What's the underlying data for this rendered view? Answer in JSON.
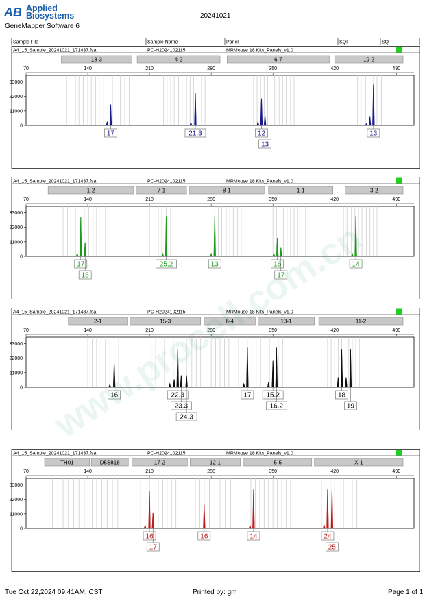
{
  "header": {
    "brand_line1": "Applied",
    "brand_line2": "Biosystems",
    "software": "GeneMapper Software 6",
    "date": "20241021",
    "logo_letters": "AB"
  },
  "watermark": "www.procell.com.cn",
  "columns": [
    "Sample File",
    "Sample Name",
    "Panel",
    "SQI",
    "SQ"
  ],
  "footer": {
    "timestamp": "Tue Oct 22,2024 09:41AM, CST",
    "printed_by": "Printed by: gm",
    "page": "Page 1 of 1"
  },
  "chart_data": [
    {
      "type": "electropherogram",
      "sample_file": "A4_15_Sample_20241021_171437.fsa",
      "sample_name": "PC-H2024102115",
      "panel": "MRMouse 18 Kits_Panels_v1.0",
      "status_color": "#1ed21e",
      "color": "#1a1a8c",
      "xlim": [
        70,
        510
      ],
      "xticks": [
        70,
        140,
        210,
        280,
        350,
        420,
        490
      ],
      "ylim": [
        0,
        38000
      ],
      "yticks": [
        0,
        11000,
        22000,
        33000
      ],
      "markers": [
        {
          "name": "18-3",
          "from": 110,
          "to": 190
        },
        {
          "name": "4-2",
          "from": 196,
          "to": 290
        },
        {
          "name": "6-7",
          "from": 298,
          "to": 414
        },
        {
          "name": "19-2",
          "from": 420,
          "to": 520
        }
      ],
      "bins": [
        116,
        121,
        126,
        130,
        135,
        140,
        144,
        149,
        153,
        158,
        163,
        168,
        173,
        177,
        182,
        187,
        226,
        230,
        234,
        238,
        243,
        247,
        252,
        256,
        260,
        264,
        269,
        273,
        328,
        332,
        336,
        340,
        344,
        348,
        352,
        357,
        361,
        365,
        370,
        374,
        446,
        450,
        455,
        459,
        464,
        468,
        473,
        477
      ],
      "peaks": [
        {
          "x": 162,
          "y": 2400
        },
        {
          "x": 166,
          "y": 15800
        },
        {
          "x": 257,
          "y": 2200
        },
        {
          "x": 262,
          "y": 25000
        },
        {
          "x": 333,
          "y": 2600
        },
        {
          "x": 337,
          "y": 20500
        },
        {
          "x": 341,
          "y": 7200
        },
        {
          "x": 456,
          "y": 1200
        },
        {
          "x": 460,
          "y": 6500
        },
        {
          "x": 464,
          "y": 31000
        }
      ],
      "alleles": [
        {
          "x": 166,
          "label": "17"
        },
        {
          "x": 262,
          "label": "21.3"
        },
        {
          "x": 337,
          "label": "12"
        },
        {
          "x": 341,
          "label": "13",
          "row": 2
        },
        {
          "x": 464,
          "label": "13"
        }
      ]
    },
    {
      "type": "electropherogram",
      "sample_file": "A4_15_Sample_20241021_171437.fsa",
      "sample_name": "PC-H2024102115",
      "panel": "MRMouse 18 Kits_Panels_v1.0",
      "status_color": "#1ed21e",
      "color": "#1c9a1c",
      "xlim": [
        70,
        510
      ],
      "xticks": [
        70,
        140,
        210,
        280,
        350,
        420,
        490
      ],
      "ylim": [
        0,
        38000
      ],
      "yticks": [
        0,
        11000,
        22000,
        33000
      ],
      "markers": [
        {
          "name": "1-2",
          "from": 95,
          "to": 192
        },
        {
          "name": "7-1",
          "from": 195,
          "to": 252
        },
        {
          "name": "8-1",
          "from": 255,
          "to": 340
        },
        {
          "name": "1-1",
          "from": 345,
          "to": 418
        },
        {
          "name": "3-2",
          "from": 432,
          "to": 535
        }
      ],
      "bins": [
        112,
        117,
        121,
        126,
        131,
        136,
        141,
        146,
        150,
        155,
        160,
        205,
        210,
        215,
        220,
        224,
        229,
        234,
        284,
        288,
        292,
        297,
        301,
        305,
        310,
        314,
        350,
        354,
        358,
        362,
        366,
        370,
        374,
        378,
        383,
        387,
        430,
        434,
        439,
        443,
        447,
        451,
        456,
        460,
        464,
        468
      ],
      "peaks": [
        {
          "x": 128,
          "y": 2100
        },
        {
          "x": 132,
          "y": 30000
        },
        {
          "x": 137,
          "y": 10500
        },
        {
          "x": 225,
          "y": 2000
        },
        {
          "x": 229,
          "y": 30500
        },
        {
          "x": 280,
          "y": 2000
        },
        {
          "x": 284,
          "y": 30500
        },
        {
          "x": 351,
          "y": 2300
        },
        {
          "x": 355,
          "y": 14000
        },
        {
          "x": 359,
          "y": 6500
        },
        {
          "x": 440,
          "y": 2000
        },
        {
          "x": 444,
          "y": 30500
        }
      ],
      "alleles": [
        {
          "x": 132,
          "label": "17"
        },
        {
          "x": 137,
          "label": "18",
          "row": 2
        },
        {
          "x": 229,
          "label": "25.2"
        },
        {
          "x": 284,
          "label": "13"
        },
        {
          "x": 355,
          "label": "16"
        },
        {
          "x": 359,
          "label": "17",
          "row": 2
        },
        {
          "x": 444,
          "label": "14"
        }
      ]
    },
    {
      "type": "electropherogram",
      "sample_file": "A4_15_Sample_20241021_171437.fsa",
      "sample_name": "PC-H2024102115",
      "panel": "MRMouse 18 Kits_Panels_v1.0",
      "status_color": "#1ed21e",
      "color": "#111111",
      "xlim": [
        70,
        510
      ],
      "xticks": [
        70,
        140,
        210,
        280,
        350,
        420,
        490
      ],
      "ylim": [
        0,
        38000
      ],
      "yticks": [
        0,
        11000,
        22000,
        33000
      ],
      "markers": [
        {
          "name": "2-1",
          "from": 118,
          "to": 185
        },
        {
          "name": "15-3",
          "from": 188,
          "to": 268
        },
        {
          "name": "6-4",
          "from": 272,
          "to": 330
        },
        {
          "name": "13-1",
          "from": 333,
          "to": 397
        },
        {
          "name": "11-2",
          "from": 402,
          "to": 560
        }
      ],
      "bins": [
        140,
        145,
        150,
        155,
        160,
        165,
        170,
        175,
        180,
        212,
        217,
        222,
        227,
        232,
        237,
        242,
        247,
        252,
        258,
        263,
        268,
        280,
        285,
        290,
        295,
        300,
        306,
        311,
        316,
        321,
        326,
        331,
        336,
        341,
        346,
        351,
        356,
        361,
        412,
        416,
        420,
        424,
        428,
        432,
        436,
        440,
        444,
        448
      ],
      "peaks": [
        {
          "x": 165,
          "y": 1800
        },
        {
          "x": 170,
          "y": 18000
        },
        {
          "x": 233,
          "y": 2500
        },
        {
          "x": 238,
          "y": 6000
        },
        {
          "x": 242,
          "y": 28500
        },
        {
          "x": 246,
          "y": 9000
        },
        {
          "x": 252,
          "y": 9000
        },
        {
          "x": 317,
          "y": 2400
        },
        {
          "x": 321,
          "y": 30000
        },
        {
          "x": 345,
          "y": 4000
        },
        {
          "x": 350,
          "y": 20000
        },
        {
          "x": 354,
          "y": 30000
        },
        {
          "x": 424,
          "y": 7500
        },
        {
          "x": 428,
          "y": 28500
        },
        {
          "x": 433,
          "y": 7500
        },
        {
          "x": 438,
          "y": 28500
        }
      ],
      "alleles": [
        {
          "x": 170,
          "label": "16"
        },
        {
          "x": 242,
          "label": "22.3"
        },
        {
          "x": 246,
          "label": "23.3",
          "row": 2
        },
        {
          "x": 252,
          "label": "24.3",
          "row": 3
        },
        {
          "x": 321,
          "label": "17"
        },
        {
          "x": 350,
          "label": "15.2"
        },
        {
          "x": 354,
          "label": "16.2",
          "row": 2
        },
        {
          "x": 428,
          "label": "18"
        },
        {
          "x": 438,
          "label": "19",
          "row": 2
        }
      ]
    },
    {
      "type": "electropherogram",
      "sample_file": "A4_15_Sample_20241021_171437.fsa",
      "sample_name": "PC-H2024102115",
      "panel": "MRMouse 18 Kits_Panels_v1.0",
      "status_color": "#1ed21e",
      "color": "#bb1c1c",
      "xlim": [
        70,
        510
      ],
      "xticks": [
        70,
        140,
        210,
        280,
        350,
        420,
        490
      ],
      "ylim": [
        0,
        38000
      ],
      "yticks": [
        0,
        11000,
        22000,
        33000
      ],
      "markers": [
        {
          "name": "TH01",
          "from": 91,
          "to": 142
        },
        {
          "name": "D5S818",
          "from": 144,
          "to": 186
        },
        {
          "name": "17-2",
          "from": 190,
          "to": 253
        },
        {
          "name": "12-1",
          "from": 256,
          "to": 313
        },
        {
          "name": "5-5",
          "from": 317,
          "to": 394
        },
        {
          "name": "X-1",
          "from": 397,
          "to": 527
        }
      ],
      "bins": [
        100,
        106,
        112,
        118,
        124,
        130,
        136,
        145,
        150,
        156,
        162,
        168,
        174,
        180,
        200,
        205,
        210,
        215,
        220,
        225,
        230,
        235,
        240,
        262,
        267,
        272,
        278,
        284,
        290,
        296,
        302,
        325,
        330,
        335,
        340,
        345,
        350,
        355,
        360,
        365,
        370,
        400,
        405,
        410,
        415,
        420,
        425,
        430,
        435,
        440,
        445
      ],
      "peaks": [
        {
          "x": 205,
          "y": 2300
        },
        {
          "x": 210,
          "y": 28000
        },
        {
          "x": 214,
          "y": 12000
        },
        {
          "x": 272,
          "y": 18000
        },
        {
          "x": 324,
          "y": 2000
        },
        {
          "x": 328,
          "y": 29500
        },
        {
          "x": 408,
          "y": 2500
        },
        {
          "x": 412,
          "y": 29500
        },
        {
          "x": 417,
          "y": 29500
        }
      ],
      "alleles": [
        {
          "x": 210,
          "label": "16"
        },
        {
          "x": 214,
          "label": "17",
          "row": 2
        },
        {
          "x": 272,
          "label": "16"
        },
        {
          "x": 328,
          "label": "14"
        },
        {
          "x": 412,
          "label": "24"
        },
        {
          "x": 417,
          "label": "25",
          "row": 2
        }
      ]
    }
  ]
}
